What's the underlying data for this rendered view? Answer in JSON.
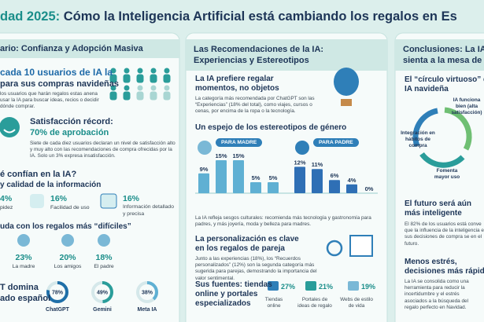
{
  "header": {
    "title_lead": "dad 2025:",
    "title": "Cómo la Inteligencia Artificial está cambiando los regalos en Es"
  },
  "left": {
    "heading": "ario: Confianza y Adopción Masiva",
    "adoption": {
      "title": [
        "cada 10 usuarios de IA la",
        "para sus compras navideñas"
      ],
      "text": "los usuarios que harán regalos estas anena usar la IA para buscar ideas, recios o decidir dónde comprar."
    },
    "satisfaction": {
      "title": "Satisfacción récord:",
      "highlight": "70% de aprobación",
      "text": "Siete de cada diez usuarios declaran un nivel de satisfacción alto y muy alto con las recomendaciones de compra ofrecidas por la IA. Solo un 3% expresa insatisfacción."
    },
    "trust": {
      "title": [
        "é confían en la IA?",
        "y calidad de la información"
      ],
      "items": [
        {
          "value": "4%",
          "label": "pidez"
        },
        {
          "value": "16%",
          "label": "Facilidad de uso"
        },
        {
          "value": "16%",
          "label": "Información detallado y precisa"
        }
      ]
    },
    "difficult": {
      "title": "uda con los regalos más “difíciles”",
      "items": [
        {
          "value": "23%",
          "label": "La madre"
        },
        {
          "value": "20%",
          "label": "Los amigos"
        },
        {
          "value": "18%",
          "label": "El padre"
        }
      ]
    },
    "market": {
      "title": [
        "T domina",
        "ado español"
      ],
      "items": [
        {
          "share": {
            "value": 78,
            "label": "78%"
          },
          "name": "ChatGPT"
        },
        {
          "share": {
            "value": 49,
            "label": "49%"
          },
          "name": "Gemini"
        },
        {
          "share": {
            "value": 38,
            "label": "38%"
          },
          "name": "Meta IA"
        }
      ]
    }
  },
  "middle": {
    "heading": [
      "Las Recomendaciones de la IA:",
      "Experiencias y Estereotipos"
    ],
    "experiences": {
      "title": [
        "La IA prefiere regalar",
        "momentos, no objetos"
      ],
      "text": "La categoría más recomendada por ChatGPT son las “Experiencias” (18% del total), como viajes, cursos o cenas, por encima de la ropa o la tecnología."
    },
    "gender": {
      "title": "Un espejo de los estereotipos de género",
      "mother": {
        "label": "PARA MADRE",
        "bars": [
          {
            "value": 9,
            "label": "9%"
          },
          {
            "value": 15,
            "label": "15%"
          },
          {
            "value": 15,
            "label": "15%"
          },
          {
            "value": 5,
            "label": "5%"
          },
          {
            "value": 5,
            "label": "5%"
          }
        ]
      },
      "father": {
        "label": "PARA PADRE",
        "bars": [
          {
            "value": 12,
            "label": "12%"
          },
          {
            "value": 11,
            "label": "11%"
          },
          {
            "value": 6,
            "label": "6%"
          },
          {
            "value": 4,
            "label": "4%"
          },
          {
            "value": 0,
            "label": "0%"
          }
        ]
      },
      "text": "La IA refleja sesgos culturales: recomienda más tecnología y gastronomía para padres, y más joyería, moda y belleza para madres."
    },
    "couples": {
      "title": [
        "La personalización es clave",
        "en los regalos de pareja"
      ],
      "text": "Junto a las experiencias (18%), los “Recuerdos personalizados” (12%) son la segunda categoría más sugerida para parejas, demostrando la importancia del valor sentimental."
    },
    "sources": {
      "title": [
        "Sus fuentes: tiendas",
        "online y portales",
        "especializados"
      ],
      "items": [
        {
          "value": "27%",
          "label": "Tiendas online"
        },
        {
          "value": "21%",
          "label": "Portales de ideas de regalo"
        },
        {
          "value": "19%",
          "label": "Webs de estilo de vida"
        }
      ]
    }
  },
  "right": {
    "heading": [
      "Conclusiones: La IA",
      "sienta a la mesa de"
    ],
    "cycle": {
      "title": [
        "El “círculo virtuoso” de",
        "IA navideña"
      ],
      "steps": [
        "IA funciona bien (alta satisfacción)",
        "Integración en hábitos de compra",
        "Fomenta mayor uso"
      ]
    },
    "future": {
      "title": [
        "El futuro será aún",
        "más inteligente"
      ],
      "text": "El 82% de los usuarios está conve que la influencia de la inteligencia en sus decisiones de compra se en el futuro."
    },
    "stress": {
      "title": [
        "Menos estrés,",
        "decisiones más rápidas"
      ],
      "text": "La IA se consolida como una herramienta para reducir la incertidumbre y el estrés asociados a la búsqueda del regalo perfecto en Navidad."
    }
  }
}
